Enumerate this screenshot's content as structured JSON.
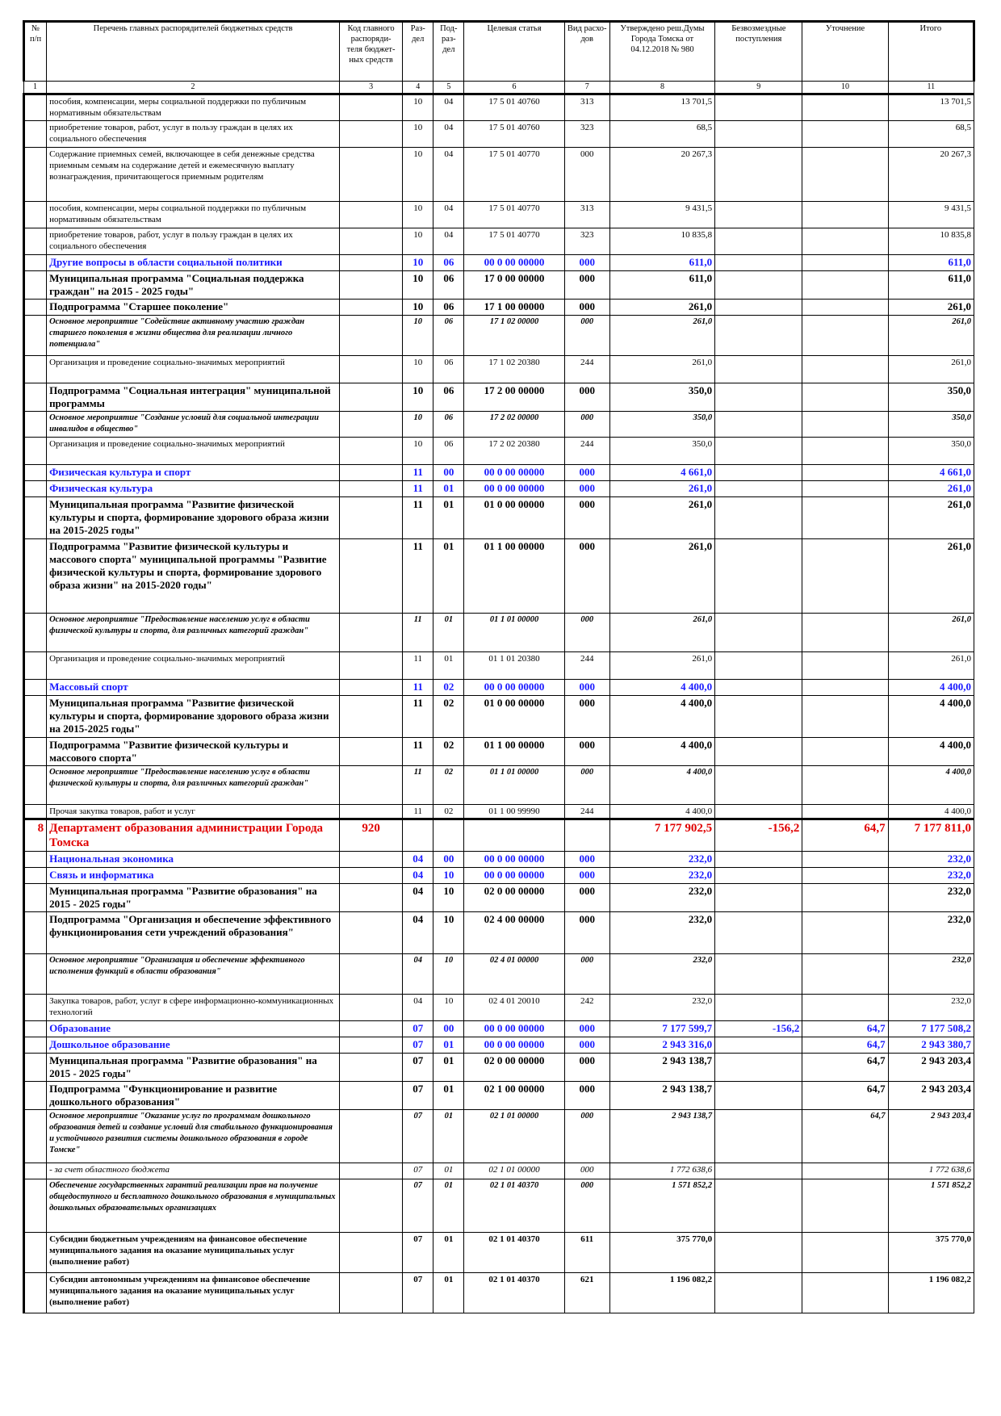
{
  "header": {
    "col1": "№ п/п",
    "col2": "Перечень главных распорядителей бюджетных средств",
    "col3": "Код главного распоряди- теля бюджет- ных средств",
    "col4": "Раз- дел",
    "col5": "Под- раз- дел",
    "col6": "Целевая статья",
    "col7": "Вид расхо- дов",
    "col8": "Утверждено реш.Думы Города Томска от 04.12.2018 № 980",
    "col9": "Безвозмездные поступления",
    "col10": "Уточнение",
    "col11": "Итого"
  },
  "col_numbers": [
    "1",
    "2",
    "3",
    "4",
    "5",
    "6",
    "7",
    "8",
    "9",
    "10",
    "11"
  ],
  "rows": [
    {
      "style": "norm",
      "h": 33,
      "npp": "",
      "name": "пособия, компенсации, меры социальной поддержки по публичным нормативным обязательствам",
      "code": "",
      "razdel": "10",
      "podrazdel": "04",
      "cs": "17 5 01 40760",
      "vr": "313",
      "utv": "13 701,5",
      "bezv": "",
      "utoch": "",
      "itogo": "13 701,5"
    },
    {
      "style": "norm",
      "h": 33,
      "npp": "",
      "name": "приобретение товаров, работ, услуг в пользу граждан в целях их социального обеспечения",
      "code": "",
      "razdel": "10",
      "podrazdel": "04",
      "cs": "17 5 01 40760",
      "vr": "323",
      "utv": "68,5",
      "bezv": "",
      "utoch": "",
      "itogo": "68,5"
    },
    {
      "style": "norm",
      "h": 67,
      "npp": "",
      "name": "Содержание приемных семей, включающее в себя денежные средства приемным семьям на содержание детей и ежемесячную выплату вознаграждения, причитающегося приемным родителям",
      "code": "",
      "razdel": "10",
      "podrazdel": "04",
      "cs": "17 5 01 40770",
      "vr": "000",
      "utv": "20 267,3",
      "bezv": "",
      "utoch": "",
      "itogo": "20 267,3"
    },
    {
      "style": "norm",
      "h": 33,
      "npp": "",
      "name": "пособия, компенсации, меры социальной поддержки по публичным нормативным обязательствам",
      "code": "",
      "razdel": "10",
      "podrazdel": "04",
      "cs": "17 5 01 40770",
      "vr": "313",
      "utv": "9 431,5",
      "bezv": "",
      "utoch": "",
      "itogo": "9 431,5"
    },
    {
      "style": "norm",
      "h": 33,
      "npp": "",
      "name": "приобретение товаров, работ, услуг в пользу граждан в целях их социального обеспечения",
      "code": "",
      "razdel": "10",
      "podrazdel": "04",
      "cs": "17 5 01 40770",
      "vr": "323",
      "utv": "10 835,8",
      "bezv": "",
      "utoch": "",
      "itogo": "10 835,8"
    },
    {
      "style": "blue",
      "h": 20,
      "npp": "",
      "name": "Другие вопросы в области социальной политики",
      "code": "",
      "razdel": "10",
      "podrazdel": "06",
      "cs": "00 0 00 00000",
      "vr": "000",
      "utv": "611,0",
      "bezv": "",
      "utoch": "",
      "itogo": "611,0"
    },
    {
      "style": "bold",
      "h": 35,
      "npp": "",
      "name": "Муниципальная программа \"Социальная поддержка граждан\" на 2015 - 2025 годы\"",
      "code": "",
      "razdel": "10",
      "podrazdel": "06",
      "cs": "17 0 00 00000",
      "vr": "000",
      "utv": "611,0",
      "bezv": "",
      "utoch": "",
      "itogo": "611,0"
    },
    {
      "style": "bold",
      "h": 20,
      "npp": "",
      "name": "Подпрограмма \"Старшее поколение\"",
      "code": "",
      "razdel": "10",
      "podrazdel": "06",
      "cs": "17 1 00 00000",
      "vr": "000",
      "utv": "261,0",
      "bezv": "",
      "utoch": "",
      "itogo": "261,0"
    },
    {
      "style": "ital",
      "h": 50,
      "npp": "",
      "name": "Основное мероприятие \"Содействие активному участию граждан старшего поколения в жизни общества для реализации личного потенциала\"",
      "code": "",
      "razdel": "10",
      "podrazdel": "06",
      "cs": "17 1 02 00000",
      "vr": "000",
      "utv": "261,0",
      "bezv": "",
      "utoch": "",
      "itogo": "261,0"
    },
    {
      "style": "norm",
      "h": 34,
      "npp": "",
      "name": "Организация и проведение социально-значимых мероприятий",
      "code": "",
      "razdel": "10",
      "podrazdel": "06",
      "cs": "17 1 02 20380",
      "vr": "244",
      "utv": "261,0",
      "bezv": "",
      "utoch": "",
      "itogo": "261,0"
    },
    {
      "style": "bold",
      "h": 35,
      "npp": "",
      "name": "Подпрограмма \"Социальная интеграция\" муниципальной программы",
      "code": "",
      "razdel": "10",
      "podrazdel": "06",
      "cs": "17 2 00 00000",
      "vr": "000",
      "utv": "350,0",
      "bezv": "",
      "utoch": "",
      "itogo": "350,0"
    },
    {
      "style": "ital",
      "h": 32,
      "npp": "",
      "name": "Основное мероприятие \"Создание условий для социальной интеграции инвалидов в общество\"",
      "code": "",
      "razdel": "10",
      "podrazdel": "06",
      "cs": "17 2 02 00000",
      "vr": "000",
      "utv": "350,0",
      "bezv": "",
      "utoch": "",
      "itogo": "350,0"
    },
    {
      "style": "norm",
      "h": 34,
      "npp": "",
      "name": "Организация и проведение социально-значимых мероприятий",
      "code": "",
      "razdel": "10",
      "podrazdel": "06",
      "cs": "17 2 02 20380",
      "vr": "244",
      "utv": "350,0",
      "bezv": "",
      "utoch": "",
      "itogo": "350,0"
    },
    {
      "style": "blue",
      "h": 20,
      "npp": "",
      "name": "Физическая культура и спорт",
      "code": "",
      "razdel": "11",
      "podrazdel": "00",
      "cs": "00 0 00 00000",
      "vr": "000",
      "utv": "4 661,0",
      "bezv": "",
      "utoch": "",
      "itogo": "4 661,0"
    },
    {
      "style": "blue",
      "h": 20,
      "npp": "",
      "name": "Физическая культура",
      "code": "",
      "razdel": "11",
      "podrazdel": "01",
      "cs": "00 0 00 00000",
      "vr": "000",
      "utv": "261,0",
      "bezv": "",
      "utoch": "",
      "itogo": "261,0"
    },
    {
      "style": "bold",
      "h": 52,
      "npp": "",
      "name": "Муниципальная программа \"Развитие физической культуры и спорта, формирование здорового образа жизни на 2015-2025 годы\"",
      "code": "",
      "razdel": "11",
      "podrazdel": "01",
      "cs": "01 0 00 00000",
      "vr": "000",
      "utv": "261,0",
      "bezv": "",
      "utoch": "",
      "itogo": "261,0"
    },
    {
      "style": "bold",
      "h": 92,
      "npp": "",
      "name": "Подпрограмма \"Развитие физической культуры и массового спорта\" муниципальной программы \"Развитие физической культуры и спорта, формирование здорового образа жизни\" на 2015-2020 годы\"",
      "code": "",
      "razdel": "11",
      "podrazdel": "01",
      "cs": "01 1 00 00000",
      "vr": "000",
      "utv": "261,0",
      "bezv": "",
      "utoch": "",
      "itogo": "261,0"
    },
    {
      "style": "ital",
      "h": 48,
      "npp": "",
      "name": "Основное мероприятие \"Предоставление населению услуг в области физической культуры и спорта, для различных категорий граждан\"",
      "code": "",
      "razdel": "11",
      "podrazdel": "01",
      "cs": "01 1 01 00000",
      "vr": "000",
      "utv": "261,0",
      "bezv": "",
      "utoch": "",
      "itogo": "261,0"
    },
    {
      "style": "norm",
      "h": 34,
      "npp": "",
      "name": "Организация и проведение социально-значимых мероприятий",
      "code": "",
      "razdel": "11",
      "podrazdel": "01",
      "cs": "01 1 01 20380",
      "vr": "244",
      "utv": "261,0",
      "bezv": "",
      "utoch": "",
      "itogo": "261,0"
    },
    {
      "style": "blue",
      "h": 20,
      "npp": "",
      "name": "Массовый спорт",
      "code": "",
      "razdel": "11",
      "podrazdel": "02",
      "cs": "00 0 00 00000",
      "vr": "000",
      "utv": "4 400,0",
      "bezv": "",
      "utoch": "",
      "itogo": "4 400,0"
    },
    {
      "style": "bold",
      "h": 52,
      "npp": "",
      "name": "Муниципальная программа \"Развитие физической культуры и спорта, формирование здорового образа жизни на 2015-2025 годы\"",
      "code": "",
      "razdel": "11",
      "podrazdel": "02",
      "cs": "01 0 00 00000",
      "vr": "000",
      "utv": "4 400,0",
      "bezv": "",
      "utoch": "",
      "itogo": "4 400,0"
    },
    {
      "style": "bold",
      "h": 35,
      "npp": "",
      "name": "Подпрограмма \"Развитие физической культуры и массового спорта\"",
      "code": "",
      "razdel": "11",
      "podrazdel": "02",
      "cs": "01 1 00 00000",
      "vr": "000",
      "utv": "4 400,0",
      "bezv": "",
      "utoch": "",
      "itogo": "4 400,0"
    },
    {
      "style": "ital",
      "h": 48,
      "npp": "",
      "name": "Основное мероприятие \"Предоставление населению услуг в области физической культуры и спорта, для различных категорий граждан\"",
      "code": "",
      "razdel": "11",
      "podrazdel": "02",
      "cs": "01 1 01 00000",
      "vr": "000",
      "utv": "4 400,0",
      "bezv": "",
      "utoch": "",
      "itogo": "4 400,0"
    },
    {
      "style": "norm",
      "h": 17,
      "npp": "",
      "name": "Прочая закупка товаров, работ и услуг",
      "code": "",
      "razdel": "11",
      "podrazdel": "02",
      "cs": "01 1 00 99990",
      "vr": "244",
      "utv": "4 400,0",
      "bezv": "",
      "utoch": "",
      "itogo": "4 400,0"
    },
    {
      "style": "dept",
      "h": 40,
      "npp": "8",
      "name": "Департамент образования администрации Города Томска",
      "code": "920",
      "razdel": "",
      "podrazdel": "",
      "cs": "",
      "vr": "",
      "utv": "7 177 902,5",
      "bezv": "-156,2",
      "utoch": "64,7",
      "itogo": "7 177 811,0"
    },
    {
      "style": "blue",
      "h": 20,
      "npp": "",
      "name": "Национальная экономика",
      "code": "",
      "razdel": "04",
      "podrazdel": "00",
      "cs": "00 0 00 00000",
      "vr": "000",
      "utv": "232,0",
      "bezv": "",
      "utoch": "",
      "itogo": "232,0"
    },
    {
      "style": "blue",
      "h": 20,
      "npp": "",
      "name": "Связь и информатика",
      "code": "",
      "razdel": "04",
      "podrazdel": "10",
      "cs": "00 0 00 00000",
      "vr": "000",
      "utv": "232,0",
      "bezv": "",
      "utoch": "",
      "itogo": "232,0"
    },
    {
      "style": "bold",
      "h": 35,
      "npp": "",
      "name": "Муниципальная программа \"Развитие образования\" на 2015 - 2025 годы\"",
      "code": "",
      "razdel": "04",
      "podrazdel": "10",
      "cs": "02 0 00 00000",
      "vr": "000",
      "utv": "232,0",
      "bezv": "",
      "utoch": "",
      "itogo": "232,0"
    },
    {
      "style": "bold",
      "h": 52,
      "npp": "",
      "name": "Подпрограмма \"Организация и обеспечение эффективного функционирования сети учреждений образования\"",
      "code": "",
      "razdel": "04",
      "podrazdel": "10",
      "cs": "02 4 00 00000",
      "vr": "000",
      "utv": "232,0",
      "bezv": "",
      "utoch": "",
      "itogo": "232,0"
    },
    {
      "style": "ital",
      "h": 50,
      "npp": "",
      "name": "Основное мероприятие \"Организация и обеспечение эффективного исполнения функций в области образования\"",
      "code": "",
      "razdel": "04",
      "podrazdel": "10",
      "cs": "02 4 01 00000",
      "vr": "000",
      "utv": "232,0",
      "bezv": "",
      "utoch": "",
      "itogo": "232,0"
    },
    {
      "style": "norm",
      "h": 33,
      "npp": "",
      "name": "Закупка товаров, работ, услуг в сфере информационно-коммуникационных технологий",
      "code": "",
      "razdel": "04",
      "podrazdel": "10",
      "cs": "02 4 01 20010",
      "vr": "242",
      "utv": "232,0",
      "bezv": "",
      "utoch": "",
      "itogo": "232,0"
    },
    {
      "style": "blue",
      "h": 20,
      "npp": "",
      "name": "Образование",
      "code": "",
      "razdel": "07",
      "podrazdel": "00",
      "cs": "00 0 00 00000",
      "vr": "000",
      "utv": "7 177 599,7",
      "bezv": "-156,2",
      "utoch": "64,7",
      "itogo": "7 177 508,2"
    },
    {
      "style": "blue",
      "h": 20,
      "npp": "",
      "name": "Дошкольное образование",
      "code": "",
      "razdel": "07",
      "podrazdel": "01",
      "cs": "00 0 00 00000",
      "vr": "000",
      "utv": "2 943 316,0",
      "bezv": "",
      "utoch": "64,7",
      "itogo": "2 943 380,7"
    },
    {
      "style": "bold",
      "h": 35,
      "npp": "",
      "name": "Муниципальная программа \"Развитие образования\" на 2015 - 2025 годы\"",
      "code": "",
      "razdel": "07",
      "podrazdel": "01",
      "cs": "02 0 00 00000",
      "vr": "000",
      "utv": "2 943 138,7",
      "bezv": "",
      "utoch": "64,7",
      "itogo": "2 943 203,4"
    },
    {
      "style": "bold",
      "h": 35,
      "npp": "",
      "name": "Подпрограмма \"Функционирование и развитие дошкольного образования\"",
      "code": "",
      "razdel": "07",
      "podrazdel": "01",
      "cs": "02 1 00 00000",
      "vr": "000",
      "utv": "2 943 138,7",
      "bezv": "",
      "utoch": "64,7",
      "itogo": "2 943 203,4"
    },
    {
      "style": "ital",
      "h": 66,
      "npp": "",
      "name": "Основное мероприятие \"Оказание услуг по программам дошкольного образования детей и создание условий для стабильного функционирования и устойчивого развития системы дошкольного образования в городе Томске\"",
      "code": "",
      "razdel": "07",
      "podrazdel": "01",
      "cs": "02 1 01 00000",
      "vr": "000",
      "utv": "2 943 138,7",
      "bezv": "",
      "utoch": "64,7",
      "itogo": "2 943 203,4"
    },
    {
      "style": "plain",
      "h": 20,
      "npp": "",
      "name": "- за счет областного бюджета",
      "code": "",
      "razdel": "07",
      "podrazdel": "01",
      "cs": "02 1 01 00000",
      "vr": "000",
      "utv": "1 772 638,6",
      "bezv": "",
      "utoch": "",
      "itogo": "1 772 638,6"
    },
    {
      "style": "ital",
      "h": 66,
      "npp": "",
      "name": "Обеспечение государственных гарантий реализации прав на получение общедоступного и бесплатного дошкольного образования в муниципальных дошкольных образовательных организациях",
      "code": "",
      "razdel": "07",
      "podrazdel": "01",
      "cs": "02 1 01 40370",
      "vr": "000",
      "utv": "1 571 852,2",
      "bezv": "",
      "utoch": "",
      "itogo": "1 571 852,2"
    },
    {
      "style": "boldsm",
      "h": 50,
      "npp": "",
      "name": "Субсидии бюджетным учреждениям на финансовое обеспечение муниципального задания на оказание муниципальных услуг (выполнение работ)",
      "code": "",
      "razdel": "07",
      "podrazdel": "01",
      "cs": "02 1 01 40370",
      "vr": "611",
      "utv": "375 770,0",
      "bezv": "",
      "utoch": "",
      "itogo": "375 770,0"
    },
    {
      "style": "boldsm",
      "h": 50,
      "npp": "",
      "name": "Субсидии автономным учреждениям на финансовое обеспечение муниципального задания на оказание муниципальных услуг (выполнение работ)",
      "code": "",
      "razdel": "07",
      "podrazdel": "01",
      "cs": "02 1 01 40370",
      "vr": "621",
      "utv": "1 196 082,2",
      "bezv": "",
      "utoch": "",
      "itogo": "1 196 082,2"
    }
  ]
}
